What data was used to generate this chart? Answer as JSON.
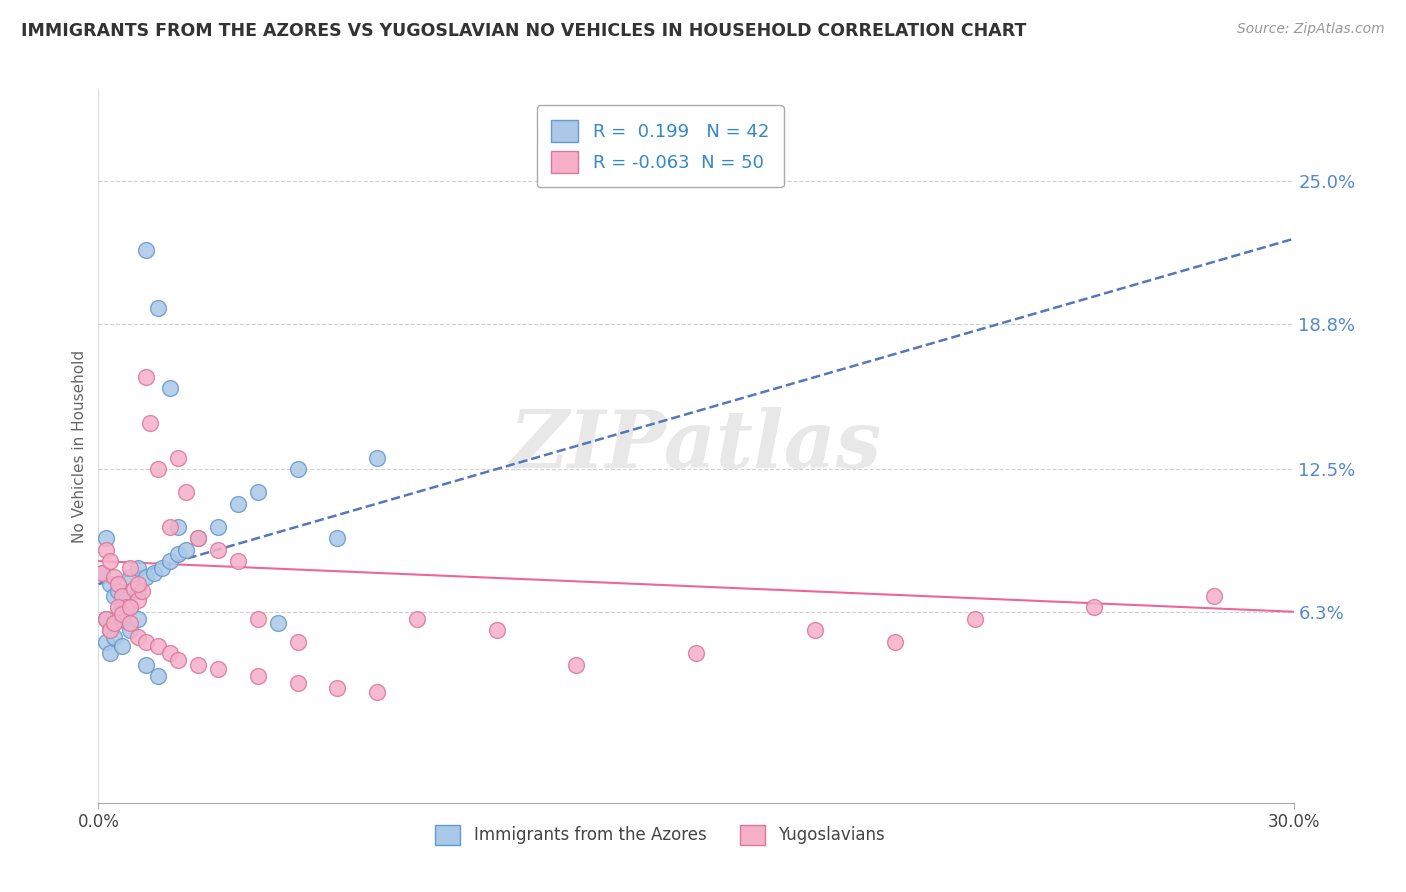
{
  "title": "IMMIGRANTS FROM THE AZORES VS YUGOSLAVIAN NO VEHICLES IN HOUSEHOLD CORRELATION CHART",
  "source_text": "Source: ZipAtlas.com",
  "ylabel": "No Vehicles in Household",
  "xlim": [
    0.0,
    0.3
  ],
  "ylim": [
    -0.02,
    0.29
  ],
  "ytick_vals": [
    0.063,
    0.125,
    0.188,
    0.25
  ],
  "ytick_labels": [
    "6.3%",
    "12.5%",
    "18.8%",
    "25.0%"
  ],
  "grid_color": "#d0d0d0",
  "background_color": "#ffffff",
  "series1_name": "Immigrants from the Azores",
  "series1_color": "#aac8e8",
  "series1_edge_color": "#6699cc",
  "series1_R": 0.199,
  "series1_N": 42,
  "series1_line_color": "#5577bb",
  "series2_name": "Yugoslavians",
  "series2_color": "#f5b0c8",
  "series2_edge_color": "#dd7799",
  "series2_R": -0.063,
  "series2_N": 50,
  "series2_line_color": "#ee6699",
  "title_color": "#333333",
  "axis_label_color": "#666666",
  "ytick_color": "#5588cc",
  "watermark_text": "ZIPatlas",
  "az_line_x0": 0.0,
  "az_line_y0": 0.075,
  "az_line_x1": 0.3,
  "az_line_y1": 0.225,
  "yu_line_x0": 0.0,
  "yu_line_y0": 0.085,
  "yu_line_x1": 0.3,
  "yu_line_y1": 0.063,
  "azores_x": [
    0.001,
    0.002,
    0.003,
    0.004,
    0.005,
    0.006,
    0.008,
    0.01,
    0.012,
    0.015,
    0.018,
    0.02,
    0.002,
    0.003,
    0.004,
    0.005,
    0.006,
    0.007,
    0.008,
    0.01,
    0.012,
    0.014,
    0.016,
    0.018,
    0.02,
    0.022,
    0.025,
    0.03,
    0.035,
    0.04,
    0.045,
    0.05,
    0.06,
    0.07,
    0.002,
    0.003,
    0.004,
    0.006,
    0.008,
    0.01,
    0.012,
    0.015
  ],
  "azores_y": [
    0.08,
    0.095,
    0.075,
    0.07,
    0.072,
    0.065,
    0.078,
    0.082,
    0.22,
    0.195,
    0.16,
    0.1,
    0.06,
    0.055,
    0.058,
    0.062,
    0.06,
    0.068,
    0.065,
    0.072,
    0.078,
    0.08,
    0.082,
    0.085,
    0.088,
    0.09,
    0.095,
    0.1,
    0.11,
    0.115,
    0.058,
    0.125,
    0.095,
    0.13,
    0.05,
    0.045,
    0.052,
    0.048,
    0.055,
    0.06,
    0.04,
    0.035
  ],
  "yugo_x": [
    0.001,
    0.002,
    0.003,
    0.004,
    0.005,
    0.006,
    0.007,
    0.008,
    0.009,
    0.01,
    0.011,
    0.012,
    0.013,
    0.015,
    0.018,
    0.02,
    0.022,
    0.025,
    0.03,
    0.035,
    0.04,
    0.05,
    0.002,
    0.003,
    0.004,
    0.005,
    0.006,
    0.008,
    0.01,
    0.012,
    0.015,
    0.018,
    0.02,
    0.025,
    0.03,
    0.04,
    0.05,
    0.06,
    0.07,
    0.08,
    0.1,
    0.12,
    0.15,
    0.18,
    0.2,
    0.22,
    0.25,
    0.28,
    0.01,
    0.008
  ],
  "yugo_y": [
    0.08,
    0.09,
    0.085,
    0.078,
    0.075,
    0.07,
    0.065,
    0.082,
    0.073,
    0.068,
    0.072,
    0.165,
    0.145,
    0.125,
    0.1,
    0.13,
    0.115,
    0.095,
    0.09,
    0.085,
    0.06,
    0.05,
    0.06,
    0.055,
    0.058,
    0.065,
    0.062,
    0.058,
    0.052,
    0.05,
    0.048,
    0.045,
    0.042,
    0.04,
    0.038,
    0.035,
    0.032,
    0.03,
    0.028,
    0.06,
    0.055,
    0.04,
    0.045,
    0.055,
    0.05,
    0.06,
    0.065,
    0.07,
    0.075,
    0.065
  ]
}
